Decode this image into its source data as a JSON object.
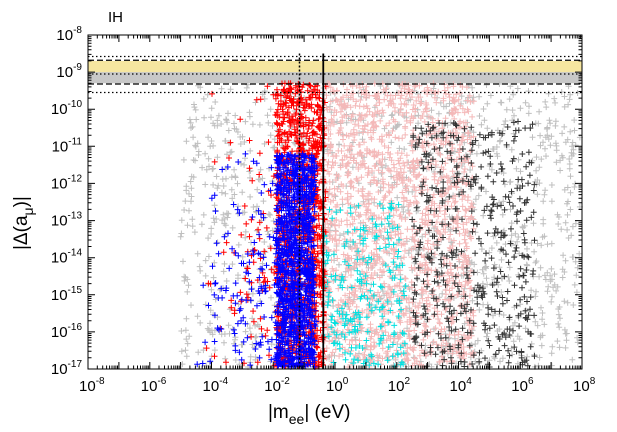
{
  "chart_data": {
    "type": "scatter",
    "title": "",
    "panel_label": "IH",
    "xlabel_main": "|m",
    "xlabel_sub": "ee",
    "xlabel_tail": "|   (eV)",
    "ylabel": "|Δ(a",
    "ylabel_sub": "μ",
    "ylabel_tail": ")|",
    "x_scale": "log10",
    "y_scale": "log10",
    "xlim_exp": [
      -8,
      8
    ],
    "ylim_exp": [
      -17,
      -8
    ],
    "x_major_exponents": [
      -8,
      -6,
      -4,
      -2,
      0,
      2,
      4,
      6,
      8
    ],
    "y_major_exponents": [
      -8,
      -9,
      -10,
      -11,
      -12,
      -13,
      -14,
      -15,
      -16,
      -17
    ],
    "x_tick_labels": [
      {
        "base": "10",
        "exp": "-8"
      },
      {
        "base": "10",
        "exp": "-6"
      },
      {
        "base": "10",
        "exp": "-4"
      },
      {
        "base": "10",
        "exp": "-2"
      },
      {
        "base": "10",
        "exp": "0"
      },
      {
        "base": "10",
        "exp": "2"
      },
      {
        "base": "10",
        "exp": "4"
      },
      {
        "base": "10",
        "exp": "6"
      },
      {
        "base": "10",
        "exp": "8"
      }
    ],
    "y_tick_labels": [
      {
        "base": "10",
        "exp": "-8"
      },
      {
        "base": "10",
        "exp": "-9"
      },
      {
        "base": "10",
        "exp": "-10"
      },
      {
        "base": "10",
        "exp": "-11"
      },
      {
        "base": "10",
        "exp": "-12"
      },
      {
        "base": "10",
        "exp": "-13"
      },
      {
        "base": "10",
        "exp": "-14"
      },
      {
        "base": "10",
        "exp": "-15"
      },
      {
        "base": "10",
        "exp": "-16"
      },
      {
        "base": "10",
        "exp": "-17"
      }
    ],
    "bands": [
      {
        "name": "gray-allowed-band",
        "y_exp_range": [
          -9.3,
          -8.7
        ],
        "color": "#c8c8c8"
      },
      {
        "name": "yellow-band",
        "y_exp_range": [
          -9.0,
          -8.7
        ],
        "color": "#f6e6a0"
      }
    ],
    "band_boundaries_dotted_y_exp": [
      -8.58,
      -9.05,
      -9.55
    ],
    "band_boundaries_dashed_y_exp": [
      -8.68,
      -9.32
    ],
    "vertical_lines": [
      {
        "name": "dotted-bound",
        "x_exp": -1.15,
        "style": "dotted",
        "y_exp_top": -8.5
      },
      {
        "name": "solid-bound",
        "x_exp": -0.38,
        "style": "solid",
        "y_exp_top": -8.5
      }
    ],
    "series": [
      {
        "name": "light-gray",
        "color": "#bfbfbf",
        "x_exp_range": [
          -5,
          8
        ],
        "y_exp_range": [
          -17,
          -9.3
        ],
        "count": 1300
      },
      {
        "name": "light-pink",
        "color": "#f4b8b8",
        "x_exp_range": [
          -0.4,
          4.5
        ],
        "y_exp_range": [
          -17,
          -9.3
        ],
        "count": 1600
      },
      {
        "name": "dark-gray",
        "color": "#333333",
        "x_exp_range": [
          2.5,
          6.5
        ],
        "y_exp_range": [
          -17,
          -10.3
        ],
        "count": 450
      },
      {
        "name": "cyan",
        "color": "#00e0e0",
        "x_exp_range": [
          -0.4,
          2.3
        ],
        "y_exp_range": [
          -17,
          -12.5
        ],
        "count": 220
      },
      {
        "name": "red",
        "color": "#ff0000",
        "x_exp_range": [
          -4.2,
          -0.3
        ],
        "y_exp_range": [
          -17,
          -9.3
        ],
        "count": 1200
      },
      {
        "name": "blue",
        "color": "#0000ff",
        "x_exp_range": [
          -4.5,
          -0.6
        ],
        "y_exp_range": [
          -17,
          -11.2
        ],
        "count": 1300
      }
    ]
  }
}
